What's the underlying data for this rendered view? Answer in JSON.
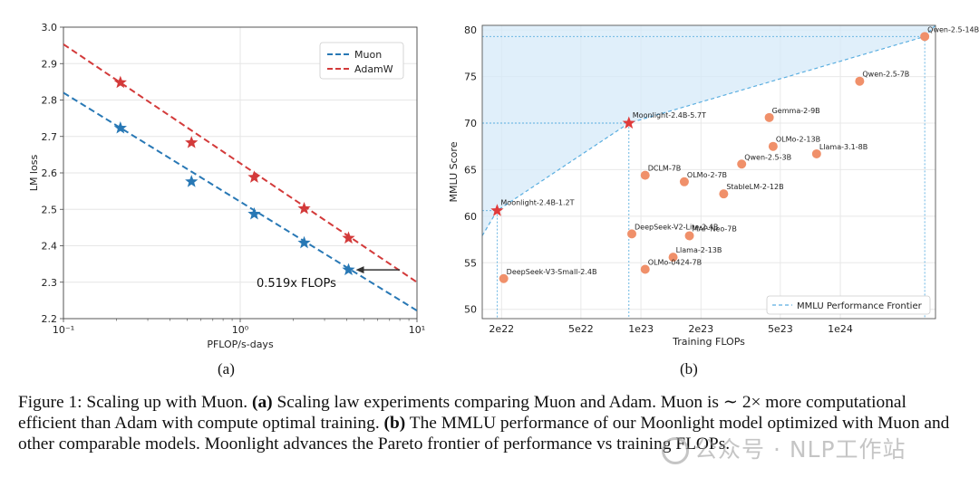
{
  "chart_data": [
    {
      "type": "scatter",
      "panel": "(a)",
      "xlabel": "PFLOP/s-days",
      "ylabel": "LM loss",
      "xscale": "log",
      "xlim": [
        0.1,
        10
      ],
      "ylim": [
        2.2,
        3.0
      ],
      "x_ticks": [
        {
          "value": 0.1,
          "label": "10⁻¹"
        },
        {
          "value": 1,
          "label": "10⁰"
        },
        {
          "value": 10,
          "label": "10¹"
        }
      ],
      "y_ticks": [
        2.2,
        2.3,
        2.4,
        2.5,
        2.6,
        2.7,
        2.8,
        2.9,
        3.0
      ],
      "y_tick_labels": [
        "2.2",
        "2.3",
        "2.4",
        "2.5",
        "2.6",
        "2.7",
        "2.8",
        "2.9",
        "3.0"
      ],
      "grid": true,
      "legend": "top-right",
      "series": [
        {
          "name": "Muon",
          "color": "#2878b5",
          "points": [
            [
              0.21,
              2.723
            ],
            [
              0.53,
              2.576
            ],
            [
              1.2,
              2.487
            ],
            [
              2.3,
              2.408
            ],
            [
              4.1,
              2.334
            ]
          ],
          "fit_line": [
            [
              0.1,
              2.82
            ],
            [
              10,
              2.222
            ]
          ]
        },
        {
          "name": "AdamW",
          "color": "#d33a3a",
          "points": [
            [
              0.21,
              2.848
            ],
            [
              0.53,
              2.683
            ],
            [
              1.2,
              2.588
            ],
            [
              2.3,
              2.502
            ],
            [
              4.1,
              2.421
            ]
          ],
          "fit_line": [
            [
              0.1,
              2.953
            ],
            [
              10,
              2.3
            ]
          ]
        }
      ],
      "annotation": {
        "text": "0.519x FLOPs",
        "arrow_from": [
          8.0,
          2.334
        ],
        "arrow_to": [
          4.1,
          2.334
        ]
      }
    },
    {
      "type": "scatter",
      "panel": "(b)",
      "xlabel": "Training FLOPs",
      "ylabel": "MMLU Score",
      "xscale": "log",
      "xlim": [
        1.6e+22,
        3e+24
      ],
      "ylim": [
        49,
        80.5
      ],
      "x_ticks": [
        {
          "value": 2e+22,
          "label": "2e22"
        },
        {
          "value": 5e+22,
          "label": "5e22"
        },
        {
          "value": 1e+23,
          "label": "1e23"
        },
        {
          "value": 2e+23,
          "label": "2e23"
        },
        {
          "value": 5e+23,
          "label": "5e23"
        },
        {
          "value": 1e+24,
          "label": "1e24"
        }
      ],
      "y_ticks": [
        50,
        55,
        60,
        65,
        70,
        75,
        80
      ],
      "y_tick_labels": [
        "50",
        "55",
        "60",
        "65",
        "70",
        "75",
        "80"
      ],
      "grid": true,
      "legend": "bottom-right",
      "legend_label": "MMLU Performance Frontier",
      "frontier_color": "#5aaee0",
      "fill_color": "#d6eaf8",
      "point_color": "#f0906a",
      "star_color": "#e03b3b",
      "frontier": [
        [
          1.6e+22,
          57.9
        ],
        [
          1.9e+22,
          60.6
        ],
        [
          8.7e+22,
          70.0
        ],
        [
          2.65e+24,
          79.3
        ],
        [
          3e+24,
          80.5
        ]
      ],
      "moonlight_points": [
        {
          "label": "Moonlight-2.4B-1.2T",
          "x": 1.9e+22,
          "y": 60.6
        },
        {
          "label": "Moonlight-2.4B-5.7T",
          "x": 8.7e+22,
          "y": 70.0
        }
      ],
      "models": [
        {
          "label": "Qwen-2.5-14B",
          "x": 2.65e+24,
          "y": 79.3
        },
        {
          "label": "Qwen-2.5-7B",
          "x": 1.25e+24,
          "y": 74.5
        },
        {
          "label": "Gemma-2-9B",
          "x": 4.4e+23,
          "y": 70.6
        },
        {
          "label": "OLMo-2-13B",
          "x": 4.6e+23,
          "y": 67.5
        },
        {
          "label": "Llama-3.1-8B",
          "x": 7.6e+23,
          "y": 66.7
        },
        {
          "label": "Qwen-2.5-3B",
          "x": 3.2e+23,
          "y": 65.6
        },
        {
          "label": "DCLM-7B",
          "x": 1.05e+23,
          "y": 64.4
        },
        {
          "label": "OLMo-2-7B",
          "x": 1.65e+23,
          "y": 63.7
        },
        {
          "label": "StableLM-2-12B",
          "x": 2.6e+23,
          "y": 62.4
        },
        {
          "label": "DeepSeek-V2-Lite-2.4B",
          "x": 9e+22,
          "y": 58.1
        },
        {
          "label": "MAP-Neo-7B",
          "x": 1.75e+23,
          "y": 57.9
        },
        {
          "label": "Llama-2-13B",
          "x": 1.45e+23,
          "y": 55.6
        },
        {
          "label": "OLMo-0424-7B",
          "x": 1.05e+23,
          "y": 54.3
        },
        {
          "label": "DeepSeek-V3-Small-2.4B",
          "x": 2.05e+22,
          "y": 53.3
        }
      ]
    }
  ],
  "panel_labels": {
    "a": "(a)",
    "b": "(b)"
  },
  "caption": {
    "fig": "Figure 1: Scaling up with Muon.",
    "a_label": "(a)",
    "a_text": "Scaling law experiments comparing Muon and Adam. Muon is ∼ 2× more computational efficient than Adam with compute optimal training.",
    "b_label": "(b)",
    "b_text": "The MMLU performance of our Moonlight model optimized with Muon and other comparable models. Moonlight advances the Pareto frontier of performance vs training FLOPs."
  },
  "watermark": "公众号 · NLP工作站"
}
